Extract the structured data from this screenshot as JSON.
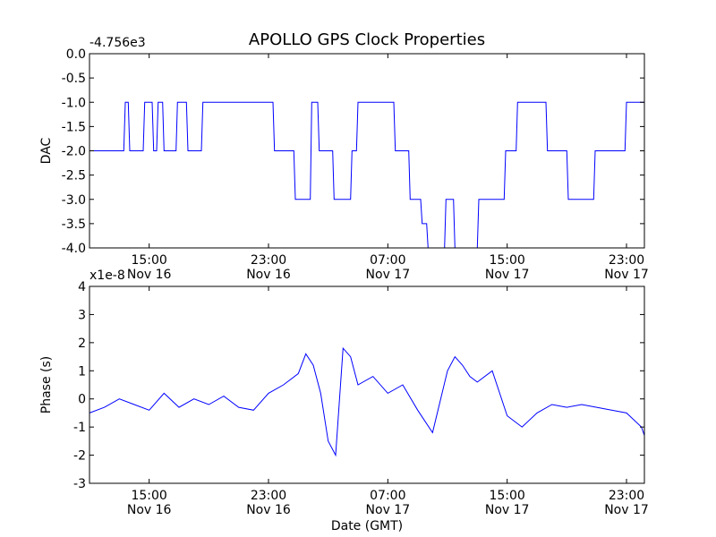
{
  "title": "APOLLO GPS Clock Properties",
  "colors": {
    "series": "#0000ff",
    "axes": "#000000",
    "background": "#ffffff"
  },
  "chart_data": [
    {
      "type": "line",
      "ylabel": "DAC",
      "offset_label": "-4.756e3",
      "xlim": [
        11,
        48.2
      ],
      "ylim": [
        -4.0,
        0.0
      ],
      "yticks": [
        0.0,
        -0.5,
        -1.0,
        -1.5,
        -2.0,
        -2.5,
        -3.0,
        -3.5,
        -4.0
      ],
      "ytick_labels": [
        "0.0",
        "-0.5",
        "-1.0",
        "-1.5",
        "-2.0",
        "-2.5",
        "-3.0",
        "-3.5",
        "-4.0"
      ],
      "xticks": [
        15,
        23,
        31,
        39,
        47
      ],
      "xtick_labels": [
        [
          "15:00",
          "Nov 16"
        ],
        [
          "23:00",
          "Nov 16"
        ],
        [
          "07:00",
          "Nov 17"
        ],
        [
          "15:00",
          "Nov 17"
        ],
        [
          "23:00",
          "Nov 17"
        ]
      ],
      "x": [
        11.0,
        13.3,
        13.4,
        13.6,
        13.7,
        14.6,
        14.7,
        15.2,
        15.3,
        15.5,
        15.6,
        15.9,
        16.0,
        16.8,
        16.9,
        17.5,
        17.6,
        18.5,
        18.6,
        23.3,
        23.4,
        24.7,
        24.8,
        25.8,
        25.9,
        26.3,
        26.4,
        27.3,
        27.4,
        28.5,
        28.6,
        28.9,
        29.0,
        31.4,
        31.5,
        32.4,
        32.5,
        33.2,
        33.3,
        33.6,
        33.7,
        34.8,
        34.9,
        35.4,
        35.5,
        37.0,
        37.1,
        38.8,
        38.9,
        39.6,
        39.7,
        41.6,
        41.7,
        43.0,
        43.1,
        44.8,
        44.9,
        46.9,
        47.0,
        48.2
      ],
      "y": [
        -2.0,
        -2.0,
        -1.0,
        -1.0,
        -2.0,
        -2.0,
        -1.0,
        -1.0,
        -2.0,
        -2.0,
        -1.0,
        -1.0,
        -2.0,
        -2.0,
        -1.0,
        -1.0,
        -2.0,
        -2.0,
        -1.0,
        -1.0,
        -2.0,
        -2.0,
        -3.0,
        -3.0,
        -1.0,
        -1.0,
        -2.0,
        -2.0,
        -3.0,
        -3.0,
        -2.0,
        -2.0,
        -1.0,
        -1.0,
        -2.0,
        -2.0,
        -3.0,
        -3.0,
        -3.5,
        -3.5,
        -4.0,
        -4.0,
        -3.0,
        -3.0,
        -4.0,
        -4.0,
        -3.0,
        -3.0,
        -2.0,
        -2.0,
        -1.0,
        -1.0,
        -2.0,
        -2.0,
        -3.0,
        -3.0,
        -2.0,
        -2.0,
        -1.0,
        -1.0
      ]
    },
    {
      "type": "line",
      "ylabel": "Phase (s)",
      "xlabel": "Date (GMT)",
      "offset_label": "x1e-8",
      "xlim": [
        11,
        48.2
      ],
      "ylim": [
        -3,
        4
      ],
      "yticks": [
        -3,
        -2,
        -1,
        0,
        1,
        2,
        3,
        4
      ],
      "ytick_labels": [
        "-3",
        "-2",
        "-1",
        "0",
        "1",
        "2",
        "3",
        "4"
      ],
      "xticks": [
        15,
        23,
        31,
        39,
        47
      ],
      "xtick_labels": [
        [
          "15:00",
          "Nov 16"
        ],
        [
          "23:00",
          "Nov 16"
        ],
        [
          "07:00",
          "Nov 17"
        ],
        [
          "15:00",
          "Nov 17"
        ],
        [
          "23:00",
          "Nov 17"
        ]
      ],
      "x": [
        11.0,
        12.0,
        13.0,
        14.0,
        15.0,
        16.0,
        17.0,
        18.0,
        19.0,
        20.0,
        21.0,
        22.0,
        23.0,
        24.0,
        25.0,
        25.5,
        26.0,
        26.5,
        27.0,
        27.5,
        28.0,
        28.5,
        29.0,
        30.0,
        31.0,
        32.0,
        33.0,
        34.0,
        35.0,
        35.5,
        36.0,
        36.5,
        37.0,
        38.0,
        39.0,
        40.0,
        41.0,
        42.0,
        43.0,
        44.0,
        45.0,
        46.0,
        47.0,
        48.0,
        48.2
      ],
      "y": [
        -0.5,
        -0.3,
        0.0,
        -0.2,
        -0.4,
        0.2,
        -0.3,
        0.0,
        -0.2,
        0.1,
        -0.3,
        -0.4,
        0.2,
        0.5,
        0.9,
        1.6,
        1.2,
        0.2,
        -1.5,
        -2.0,
        1.8,
        1.5,
        0.5,
        0.8,
        0.2,
        0.5,
        -0.4,
        -1.2,
        1.0,
        1.5,
        1.2,
        0.8,
        0.6,
        1.0,
        -0.6,
        -1.0,
        -0.5,
        -0.2,
        -0.3,
        -0.2,
        -0.3,
        -0.4,
        -0.5,
        -1.0,
        -1.3
      ]
    }
  ]
}
